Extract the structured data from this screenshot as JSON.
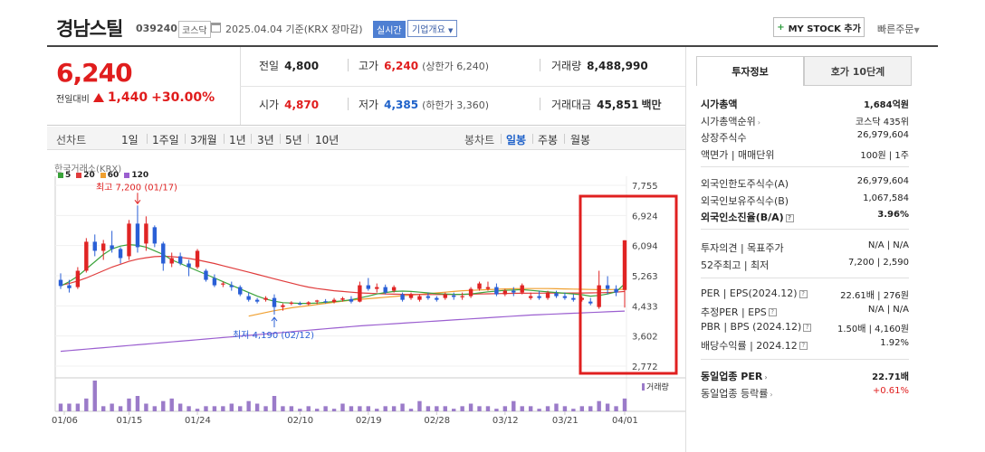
{
  "header": {
    "stock_name": "경남스틸",
    "stock_code": "039240",
    "market": "코스닥",
    "date": "2025.04.04 기준(KRX 장마감)",
    "realtime": "실시간",
    "overview": "기업개요",
    "mystock": "MY STOCK 추가",
    "quick_order": "빠른주문"
  },
  "price": {
    "current": "6,240",
    "change_label": "전일대비",
    "change": "1,440",
    "change_pct": "+30.00%"
  },
  "quote": {
    "prev_label": "전일",
    "prev": "4,800",
    "high_label": "고가",
    "high": "6,240",
    "high_sub": "(상한가 6,240)",
    "volume_label": "거래량",
    "volume": "8,488,990",
    "open_label": "시가",
    "open": "4,870",
    "low_label": "저가",
    "low": "4,385",
    "low_sub": "(하한가 3,360)",
    "amount_label": "거래대금",
    "amount": "45,851",
    "amount_unit": "백만"
  },
  "periods": {
    "line_chart": "선차트",
    "items": [
      "1일",
      "1주일",
      "3개월",
      "1년",
      "3년",
      "5년",
      "10년"
    ],
    "candle_chart": "봉차트",
    "candle_items": [
      "일봉",
      "주봉",
      "월봉"
    ]
  },
  "chart_data": {
    "type": "candlestick",
    "market_label": "한국거래소(KRX)",
    "legend": [
      {
        "name": "5",
        "color": "#3aa33a"
      },
      {
        "name": "20",
        "color": "#e03c3c"
      },
      {
        "name": "60",
        "color": "#f0a030"
      },
      {
        "name": "120",
        "color": "#9b5fd0"
      }
    ],
    "y_ticks": [
      "7,755",
      "6,924",
      "6,094",
      "5,263",
      "4,433",
      "3,602",
      "2,772"
    ],
    "ylim": [
      2772,
      7755
    ],
    "x_ticks": [
      "01/06",
      "01/15",
      "01/24",
      "02/10",
      "02/19",
      "02/28",
      "03/12",
      "03/21",
      "04/01"
    ],
    "high_annotation": "최고 7,200 (01/17)",
    "low_annotation": "최저 4,190 (02/12)",
    "volume_label": "거래량",
    "candles": [
      [
        5150,
        5330,
        4900,
        4980
      ],
      [
        5000,
        5150,
        4800,
        4920
      ],
      [
        4950,
        5500,
        4900,
        5400
      ],
      [
        5400,
        6300,
        5350,
        6200
      ],
      [
        6200,
        6400,
        5800,
        5950
      ],
      [
        5950,
        6250,
        5700,
        6150
      ],
      [
        6100,
        6500,
        5900,
        6000
      ],
      [
        6000,
        6050,
        5600,
        5750
      ],
      [
        5800,
        6800,
        5700,
        6700
      ],
      [
        6700,
        7200,
        5900,
        6050
      ],
      [
        6150,
        6900,
        5950,
        6700
      ],
      [
        6600,
        6650,
        6050,
        6150
      ],
      [
        6150,
        6200,
        5400,
        5600
      ],
      [
        5600,
        5900,
        5500,
        5750
      ],
      [
        5800,
        5900,
        5550,
        5600
      ],
      [
        5600,
        5700,
        5250,
        5500
      ],
      [
        5500,
        6000,
        5450,
        5950
      ],
      [
        5400,
        5450,
        5100,
        5150
      ],
      [
        5200,
        5300,
        4950,
        5000
      ],
      [
        5050,
        5100,
        4950,
        5050
      ],
      [
        5000,
        5100,
        4850,
        4950
      ],
      [
        4950,
        5000,
        4700,
        4750
      ],
      [
        4700,
        4800,
        4550,
        4600
      ],
      [
        4600,
        4650,
        4500,
        4550
      ],
      [
        4600,
        4700,
        4550,
        4650
      ],
      [
        4650,
        4750,
        4190,
        4400
      ],
      [
        4400,
        4500,
        4300,
        4450
      ],
      [
        4500,
        4560,
        4450,
        4520
      ],
      [
        4500,
        4550,
        4450,
        4480
      ],
      [
        4480,
        4560,
        4450,
        4530
      ],
      [
        4550,
        4600,
        4480,
        4580
      ],
      [
        4560,
        4620,
        4500,
        4540
      ],
      [
        4540,
        4650,
        4500,
        4600
      ],
      [
        4600,
        4680,
        4550,
        4640
      ],
      [
        4620,
        4700,
        4500,
        4550
      ],
      [
        4550,
        5100,
        4530,
        5000
      ],
      [
        5000,
        5200,
        4850,
        4900
      ],
      [
        4900,
        5050,
        4800,
        4950
      ],
      [
        4950,
        5020,
        4750,
        4800
      ],
      [
        4850,
        5000,
        4800,
        4950
      ],
      [
        4750,
        4800,
        4550,
        4600
      ],
      [
        4650,
        4800,
        4600,
        4750
      ],
      [
        4600,
        4750,
        4550,
        4700
      ],
      [
        4700,
        4800,
        4600,
        4650
      ],
      [
        4650,
        4700,
        4550,
        4600
      ],
      [
        4650,
        4800,
        4600,
        4750
      ],
      [
        4720,
        4800,
        4600,
        4680
      ],
      [
        4680,
        4800,
        4600,
        4700
      ],
      [
        4700,
        4950,
        4650,
        4900
      ],
      [
        4900,
        5100,
        4850,
        5050
      ],
      [
        4900,
        5100,
        4850,
        4950
      ],
      [
        4950,
        5050,
        4700,
        4750
      ],
      [
        4750,
        4900,
        4700,
        4850
      ],
      [
        4850,
        4950,
        4700,
        4800
      ],
      [
        4800,
        5050,
        4750,
        5000
      ],
      [
        4650,
        4800,
        4600,
        4700
      ],
      [
        4700,
        4850,
        4600,
        4650
      ],
      [
        4650,
        4850,
        4600,
        4800
      ],
      [
        4780,
        4850,
        4650,
        4700
      ],
      [
        4700,
        4800,
        4600,
        4650
      ],
      [
        4650,
        4750,
        4550,
        4600
      ],
      [
        4600,
        4700,
        4550,
        4650
      ],
      [
        4550,
        4650,
        4450,
        4500
      ],
      [
        4400,
        5400,
        4350,
        5000
      ],
      [
        5000,
        5250,
        4750,
        4900
      ],
      [
        4900,
        5000,
        4700,
        4800
      ],
      [
        4870,
        6240,
        4385,
        6240
      ]
    ],
    "ma5": [
      4980,
      5100,
      5250,
      5450,
      5650,
      5850,
      6000,
      6080,
      6120,
      6100,
      6050,
      5950,
      5850,
      5700,
      5600,
      5500,
      5400,
      5300,
      5200,
      5100,
      5000,
      4900,
      4800,
      4700,
      4620,
      4560,
      4520,
      4510,
      4500,
      4500,
      4510,
      4530,
      4550,
      4570,
      4600,
      4650,
      4700,
      4760,
      4800,
      4830,
      4840,
      4830,
      4810,
      4790,
      4770,
      4760,
      4750,
      4750,
      4760,
      4790,
      4820,
      4840,
      4860,
      4870,
      4880,
      4860,
      4840,
      4820,
      4800,
      4780,
      4760,
      4740,
      4700,
      4720,
      4760,
      4820,
      5040
    ],
    "ma20": [
      5000,
      5050,
      5120,
      5200,
      5300,
      5400,
      5500,
      5580,
      5660,
      5720,
      5760,
      5790,
      5800,
      5790,
      5770,
      5740,
      5700,
      5650,
      5600,
      5540,
      5480,
      5420,
      5360,
      5300,
      5240,
      5180,
      5120,
      5060,
      5000,
      4950,
      4910,
      4880,
      4850,
      4830,
      4810,
      4790,
      4780,
      4770,
      4760,
      4755,
      4750,
      4748,
      4746,
      4745,
      4745,
      4746,
      4748,
      4750,
      4755,
      4760,
      4765,
      4770,
      4775,
      4778,
      4780,
      4782,
      4783,
      4784,
      4785,
      4786,
      4787,
      4788,
      4790,
      4795,
      4800,
      4810,
      4830
    ],
    "ma60": [
      null,
      null,
      null,
      null,
      null,
      null,
      null,
      null,
      null,
      null,
      null,
      null,
      null,
      null,
      null,
      null,
      null,
      null,
      null,
      null,
      null,
      null,
      4150,
      4200,
      4250,
      4300,
      4340,
      4380,
      4410,
      4440,
      4470,
      4500,
      4530,
      4560,
      4590,
      4610,
      4630,
      4650,
      4670,
      4690,
      4710,
      4730,
      4750,
      4770,
      4790,
      4810,
      4830,
      4850,
      4860,
      4870,
      4880,
      4890,
      4900,
      4905,
      4910,
      4910,
      4910,
      4910,
      4905,
      4900,
      4895,
      4890,
      4885,
      4880,
      4880,
      4885,
      4890
    ],
    "ma120": [
      3180,
      3200,
      3220,
      3240,
      3260,
      3280,
      3300,
      3320,
      3340,
      3360,
      3380,
      3400,
      3420,
      3440,
      3460,
      3480,
      3500,
      3520,
      3540,
      3560,
      3580,
      3600,
      3620,
      3640,
      3660,
      3680,
      3700,
      3720,
      3740,
      3760,
      3780,
      3800,
      3820,
      3840,
      3860,
      3880,
      3895,
      3910,
      3925,
      3940,
      3955,
      3970,
      3985,
      4000,
      4015,
      4030,
      4045,
      4060,
      4075,
      4090,
      4105,
      4120,
      4135,
      4150,
      4165,
      4180,
      4190,
      4200,
      4210,
      4220,
      4230,
      4240,
      4250,
      4260,
      4270,
      4280,
      4290
    ],
    "volume": [
      3,
      3,
      3,
      5,
      12,
      2,
      3,
      2,
      5,
      6,
      3,
      2,
      4,
      5,
      3,
      2,
      1,
      2,
      2,
      2,
      3,
      2,
      4,
      3,
      2,
      6,
      2,
      2,
      1,
      2,
      1,
      2,
      1,
      3,
      2,
      2,
      2,
      1,
      2,
      2,
      3,
      1,
      4,
      2,
      2,
      2,
      1,
      2,
      3,
      2,
      2,
      1,
      2,
      4,
      2,
      2,
      1,
      2,
      3,
      2,
      1,
      2,
      2,
      4,
      3,
      2,
      5
    ],
    "highlight_box_color": "#e02020"
  },
  "info": {
    "tab_active": "투자정보",
    "tab_other": "호가 10단계",
    "s1": [
      {
        "k": "시가총액",
        "v": "1,684억원",
        "bold": true
      },
      {
        "k": "시가총액순위",
        "v": "코스닥 435위",
        "arrow": true
      },
      {
        "k": "상장주식수",
        "v": "26,979,604"
      },
      {
        "k": "액면가 | 매매단위",
        "v": "100원 | 1주"
      }
    ],
    "s2": [
      {
        "k": "외국인한도주식수(A)",
        "v": "26,979,604"
      },
      {
        "k": "외국인보유주식수(B)",
        "v": "1,067,584"
      },
      {
        "k": "외국인소진율(B/A)",
        "v": "3.96%",
        "bold": true,
        "q": true
      }
    ],
    "s3": [
      {
        "k": "투자의견 | 목표주가",
        "v": "N/A | N/A"
      },
      {
        "k": "52주최고 | 최저",
        "v": "7,200 | 2,590"
      }
    ],
    "s4": [
      {
        "k": "PER | EPS(2024.12)",
        "v": "22.61배 | 276원",
        "q": true
      },
      {
        "k": "추정PER | EPS",
        "v": "N/A | N/A",
        "q": true
      },
      {
        "k": "PBR | BPS (2024.12)",
        "v": "1.50배 | 4,160원",
        "q": true
      },
      {
        "k": "배당수익률 | 2024.12",
        "v": "1.92%",
        "q": true
      }
    ],
    "s5": [
      {
        "k": "동일업종 PER",
        "v": "22.71배",
        "bold": true,
        "arrow": true
      },
      {
        "k": "동일업종 등락률",
        "v": "+0.61%",
        "red": true,
        "arrow": true
      }
    ]
  }
}
